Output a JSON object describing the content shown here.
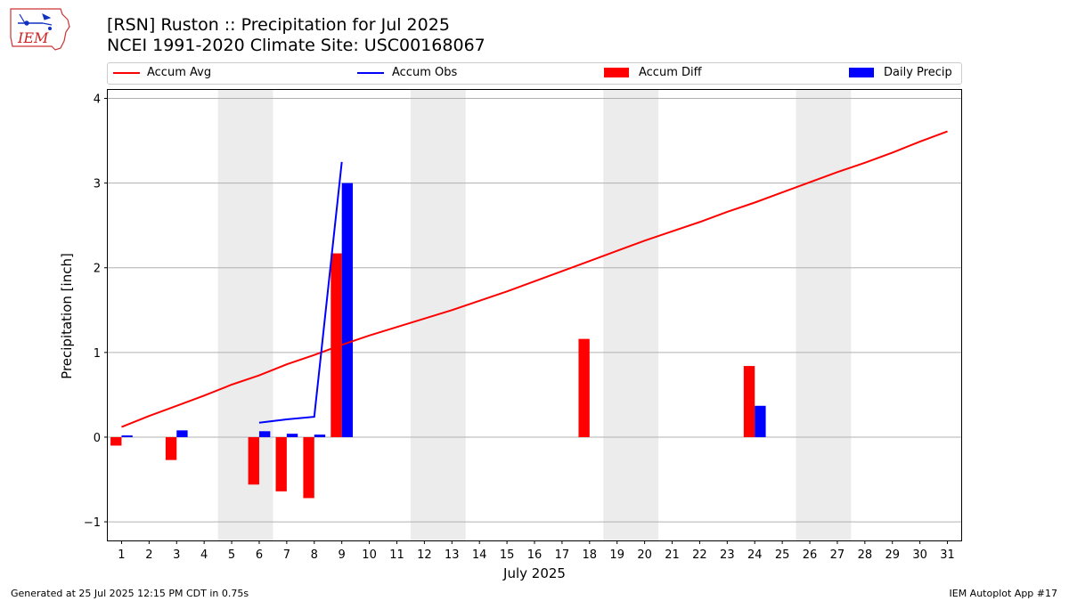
{
  "header": {
    "title_line1": "[RSN] Ruston :: Precipitation for Jul 2025",
    "title_line2": "NCEI 1991-2020 Climate Site: USC00168067",
    "logo_text": "IEM"
  },
  "legend": {
    "items": [
      {
        "label": "Accum Avg",
        "kind": "line",
        "color": "#ff0000"
      },
      {
        "label": "Accum Obs",
        "kind": "line",
        "color": "#0000ff"
      },
      {
        "label": "Accum Diff",
        "kind": "box",
        "color": "#ff0000"
      },
      {
        "label": "Daily Precip",
        "kind": "box",
        "color": "#0000ff"
      }
    ],
    "placement": "top"
  },
  "footer": {
    "left": "Generated at 25 Jul 2025 12:15 PM CDT in 0.75s",
    "right": "IEM Autoplot App #17"
  },
  "chart_data": {
    "type": "bar",
    "xlabel": "July 2025",
    "ylabel": "Precipitation [inch]",
    "ylim": [
      -1.22,
      4.1
    ],
    "yticks": [
      -1,
      0,
      1,
      2,
      3,
      4
    ],
    "ytick_labels": [
      "−1",
      "0",
      "1",
      "2",
      "3",
      "4"
    ],
    "xlim": [
      0.5,
      31.5
    ],
    "days": [
      1,
      2,
      3,
      4,
      5,
      6,
      7,
      8,
      9,
      10,
      11,
      12,
      13,
      14,
      15,
      16,
      17,
      18,
      19,
      20,
      21,
      22,
      23,
      24,
      25,
      26,
      27,
      28,
      29,
      30,
      31
    ],
    "grid": "horizontal",
    "weekend_shading": [
      [
        4.5,
        6.5
      ],
      [
        11.5,
        13.5
      ],
      [
        18.5,
        20.5
      ],
      [
        25.5,
        27.5
      ]
    ],
    "colors": {
      "avg": "#ff0000",
      "obs": "#0000ff",
      "diff": "#ff0000",
      "daily": "#0000ff",
      "weekend": "#ececec",
      "grid": "#b0b0b0"
    },
    "series": [
      {
        "name": "Accum Avg",
        "kind": "line",
        "x": [
          1,
          2,
          3,
          4,
          5,
          6,
          7,
          8,
          9,
          10,
          11,
          12,
          13,
          14,
          15,
          16,
          17,
          18,
          19,
          20,
          21,
          22,
          23,
          24,
          25,
          26,
          27,
          28,
          29,
          30,
          31
        ],
        "values": [
          0.12,
          0.25,
          0.37,
          0.49,
          0.62,
          0.73,
          0.86,
          0.97,
          1.09,
          1.2,
          1.3,
          1.4,
          1.5,
          1.61,
          1.72,
          1.84,
          1.96,
          2.08,
          2.2,
          2.32,
          2.43,
          2.54,
          2.66,
          2.77,
          2.89,
          3.01,
          3.13,
          3.24,
          3.36,
          3.49,
          3.61
        ]
      },
      {
        "name": "Accum Obs",
        "kind": "line",
        "x": [
          6,
          7,
          8,
          9
        ],
        "values": [
          0.17,
          0.21,
          0.24,
          3.25
        ]
      },
      {
        "name": "Accum Diff",
        "kind": "bar",
        "x": [
          1,
          3,
          6,
          7,
          8,
          9,
          18,
          24
        ],
        "values": [
          -0.1,
          -0.27,
          -0.56,
          -0.64,
          -0.72,
          2.17,
          1.16,
          0.84
        ]
      },
      {
        "name": "Daily Precip",
        "kind": "bar",
        "x": [
          1,
          3,
          6,
          7,
          8,
          9,
          24
        ],
        "values": [
          0.02,
          0.08,
          0.07,
          0.04,
          0.03,
          3.0,
          0.37
        ]
      }
    ]
  }
}
